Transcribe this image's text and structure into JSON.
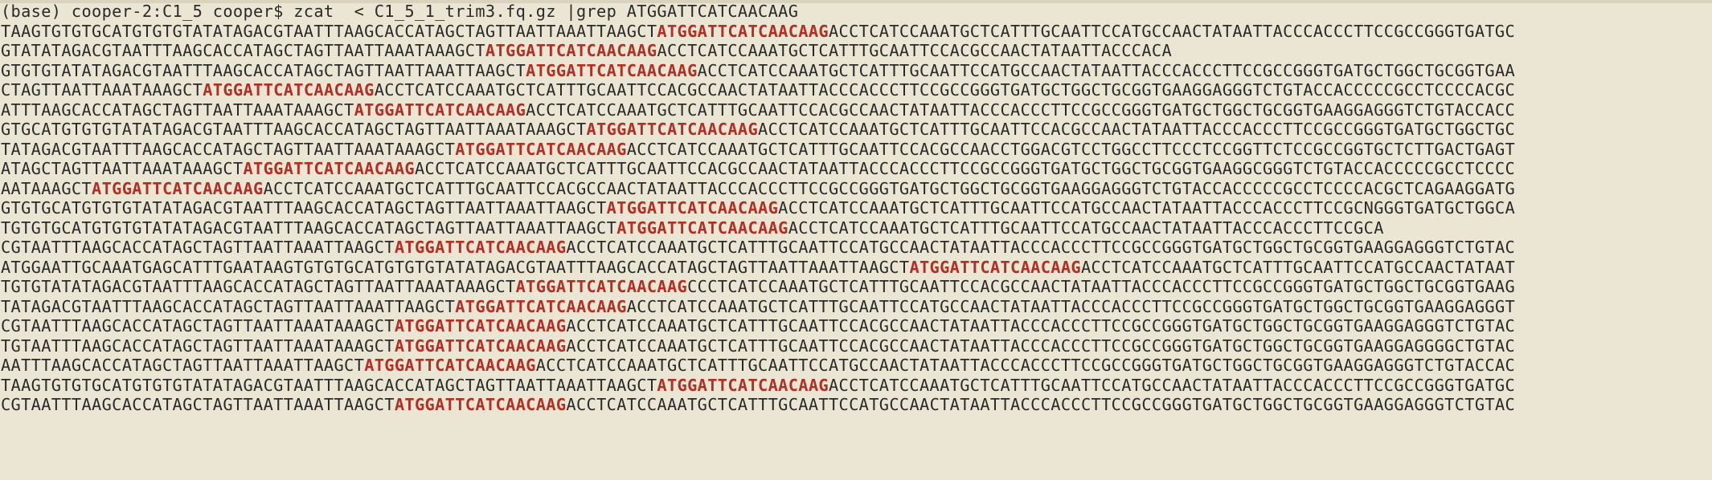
{
  "terminal": {
    "prompt": "(base) cooper-2:C1_5 cooper$ ",
    "command": "zcat  < C1_5_1_trim3.fq.gz |grep ATGGATTCATCAACAAG"
  },
  "colors": {
    "background": "#ebe6d3",
    "text": "#2a2a2a",
    "match": "#b22f25"
  },
  "output": [
    {
      "pre": "TAAGTGTGTGCATGTGTGTATATAGACGTAATTTAAGCACCATAGCTAGTTAATTAAATTAAGCT",
      "match": "ATGGATTCATCAACAAG",
      "post": "ACCTCATCCAAATGCTCATTTGCAATTCCATGCCAACTATAATTACCCACCCTTCCGCCGGGTGATGC"
    },
    {
      "pre": "GTATATAGACGTAATTTAAGCACCATAGCTAGTTAATTAAATAAAGCT",
      "match": "ATGGATTCATCAACAAG",
      "post": "ACCTCATCCAAATGCTCATTTGCAATTCCACGCCAACTATAATTACCCACA"
    },
    {
      "pre": "GTGTGTATATAGACGTAATTTAAGCACCATAGCTAGTTAATTAAATTAAGCT",
      "match": "ATGGATTCATCAACAAG",
      "post": "ACCTCATCCAAATGCTCATTTGCAATTCCATGCCAACTATAATTACCCACCCTTCCGCCGGGTGATGCTGGCTGCGGTGAA"
    },
    {
      "pre": "CTAGTTAATTAAATAAAGCT",
      "match": "ATGGATTCATCAACAAG",
      "post": "ACCTCATCCAAATGCTCATTTGCAATTCCACGCCAACTATAATTACCCACCCTTCCGCCGGGTGATGCTGGCTGCGGTGAAGGAGGGTCTGTACCACCCCCGCCTCCCCACGC"
    },
    {
      "pre": "ATTTAAGCACCATAGCTAGTTAATTAAATAAAGCT",
      "match": "ATGGATTCATCAACAAG",
      "post": "ACCTCATCCAAATGCTCATTTGCAATTCCACGCCAACTATAATTACCCACCCTTCCGCCGGGTGATGCTGGCTGCGGTGAAGGAGGGTCTGTACCACC"
    },
    {
      "pre": "GTGCATGTGTGTATATAGACGTAATTTAAGCACCATAGCTAGTTAATTAAATAAAGCT",
      "match": "ATGGATTCATCAACAAG",
      "post": "ACCTCATCCAAATGCTCATTTGCAATTCCACGCCAACTATAATTACCCACCCTTCCGCCGGGTGATGCTGGCTGC"
    },
    {
      "pre": "TATAGACGTAATTTAAGCACCATAGCTAGTTAATTAAATAAAGCT",
      "match": "ATGGATTCATCAACAAG",
      "post": "ACCTCATCCAAATGCTCATTTGCAATTCCACGCCAACCTGGACGTCCTGGCCTTCCCTCCGGTTCTCCGCCGGTGCTCTTGACTGAGT"
    },
    {
      "pre": "ATAGCTAGTTAATTAAATAAAGCT",
      "match": "ATGGATTCATCAACAAG",
      "post": "ACCTCATCCAAATGCTCATTTGCAATTCCACGCCAACTATAATTACCCACCCTTCCGCCGGGTGATGCTGGCTGCGGTGAAGGCGGGTCTGTACCACCCCCGCCTCCCC"
    },
    {
      "pre": "AATAAAGCT",
      "match": "ATGGATTCATCAACAAG",
      "post": "ACCTCATCCAAATGCTCATTTGCAATTCCACGCCAACTATAATTACCCACCCTTCCGCCGGGTGATGCTGGCTGCGGTGAAGGAGGGTCTGTACCACCCCCGCCTCCCCACGCTCAGAAGGATG"
    },
    {
      "pre": "GTGTGCATGTGTGTATATAGACGTAATTTAAGCACCATAGCTAGTTAATTAAATTAAGCT",
      "match": "ATGGATTCATCAACAAG",
      "post": "ACCTCATCCAAATGCTCATTTGCAATTCCATGCCAACTATAATTACCCACCCTTCCGCNGGGTGATGCTGGCA"
    },
    {
      "pre": "TGTGTGCATGTGTGTATATAGACGTAATTTAAGCACCATAGCTAGTTAATTAAATTAAGCT",
      "match": "ATGGATTCATCAACAAG",
      "post": "ACCTCATCCAAATGCTCATTTGCAATTCCATGCCAACTATAATTACCCACCCTTCCGCA"
    },
    {
      "pre": "CGTAATTTAAGCACCATAGCTAGTTAATTAAATTAAGCT",
      "match": "ATGGATTCATCAACAAG",
      "post": "ACCTCATCCAAATGCTCATTTGCAATTCCATGCCAACTATAATTACCCACCCTTCCGCCGGGTGATGCTGGCTGCGGTGAAGGAGGGTCTGTAC"
    },
    {
      "pre": "ATGGAATTGCAAATGAGCATTTGAATAAGTGTGTGCATGTGTGTATATAGACGTAATTTAAGCACCATAGCTAGTTAATTAAATTAAGCT",
      "match": "ATGGATTCATCAACAAG",
      "post": "ACCTCATCCAAATGCTCATTTGCAATTCCATGCCAACTATAAT"
    },
    {
      "pre": "TGTGTATATAGACGTAATTTAAGCACCATAGCTAGTTAATTAAATAAAGCT",
      "match": "ATGGATTCATCAACAAG",
      "post": "CCCTCATCCAAATGCTCATTTGCAATTCCACGCCAACTATAATTACCCACCCTTCCGCCGGGTGATGCTGGCTGCGGTGAAG"
    },
    {
      "pre": "TATAGACGTAATTTAAGCACCATAGCTAGTTAATTAAATTAAGCT",
      "match": "ATGGATTCATCAACAAG",
      "post": "ACCTCATCCAAATGCTCATTTGCAATTCCATGCCAACTATAATTACCCACCCTTCCGCCGGGTGATGCTGGCTGCGGTGAAGGAGGGT"
    },
    {
      "pre": "CGTAATTTAAGCACCATAGCTAGTTAATTAAATAAAGCT",
      "match": "ATGGATTCATCAACAAG",
      "post": "ACCTCATCCAAATGCTCATTTGCAATTCCACGCCAACTATAATTACCCACCCTTCCGCCGGGTGATGCTGGCTGCGGTGAAGGAGGGTCTGTAC"
    },
    {
      "pre": "TGTAATTTAAGCACCATAGCTAGTTAATTAAATAAAGCT",
      "match": "ATGGATTCATCAACAAG",
      "post": "ACCTCATCCAAATGCTCATTTGCAATTCCACGCCAACTATAATTACCCACCCTTCCGCCGGGTGATGCTGGCTGCGGTGAAGGAGGGGCTGTAC"
    },
    {
      "pre": "AATTTAAGCACCATAGCTAGTTAATTAAATTAAGCT",
      "match": "ATGGATTCATCAACAAG",
      "post": "ACCTCATCCAAATGCTCATTTGCAATTCCATGCCAACTATAATTACCCACCCTTCCGCCGGGTGATGCTGGCTGCGGTGAAGGAGGGTCTGTACCAC"
    },
    {
      "pre": "TAAGTGTGTGCATGTGTGTATATAGACGTAATTTAAGCACCATAGCTAGTTAATTAAATTAAGCT",
      "match": "ATGGATTCATCAACAAG",
      "post": "ACCTCATCCAAATGCTCATTTGCAATTCCATGCCAACTATAATTACCCACCCTTCCGCCGGGTGATGC"
    },
    {
      "pre": "CGTAATTTAAGCACCATAGCTAGTTAATTAAATTAAGCT",
      "match": "ATGGATTCATCAACAAG",
      "post": "ACCTCATCCAAATGCTCATTTGCAATTCCATGCCAACTATAATTACCCACCCTTCCGCCGGGTGATGCTGGCTGCGGTGAAGGAGGGTCTGTAC"
    }
  ]
}
